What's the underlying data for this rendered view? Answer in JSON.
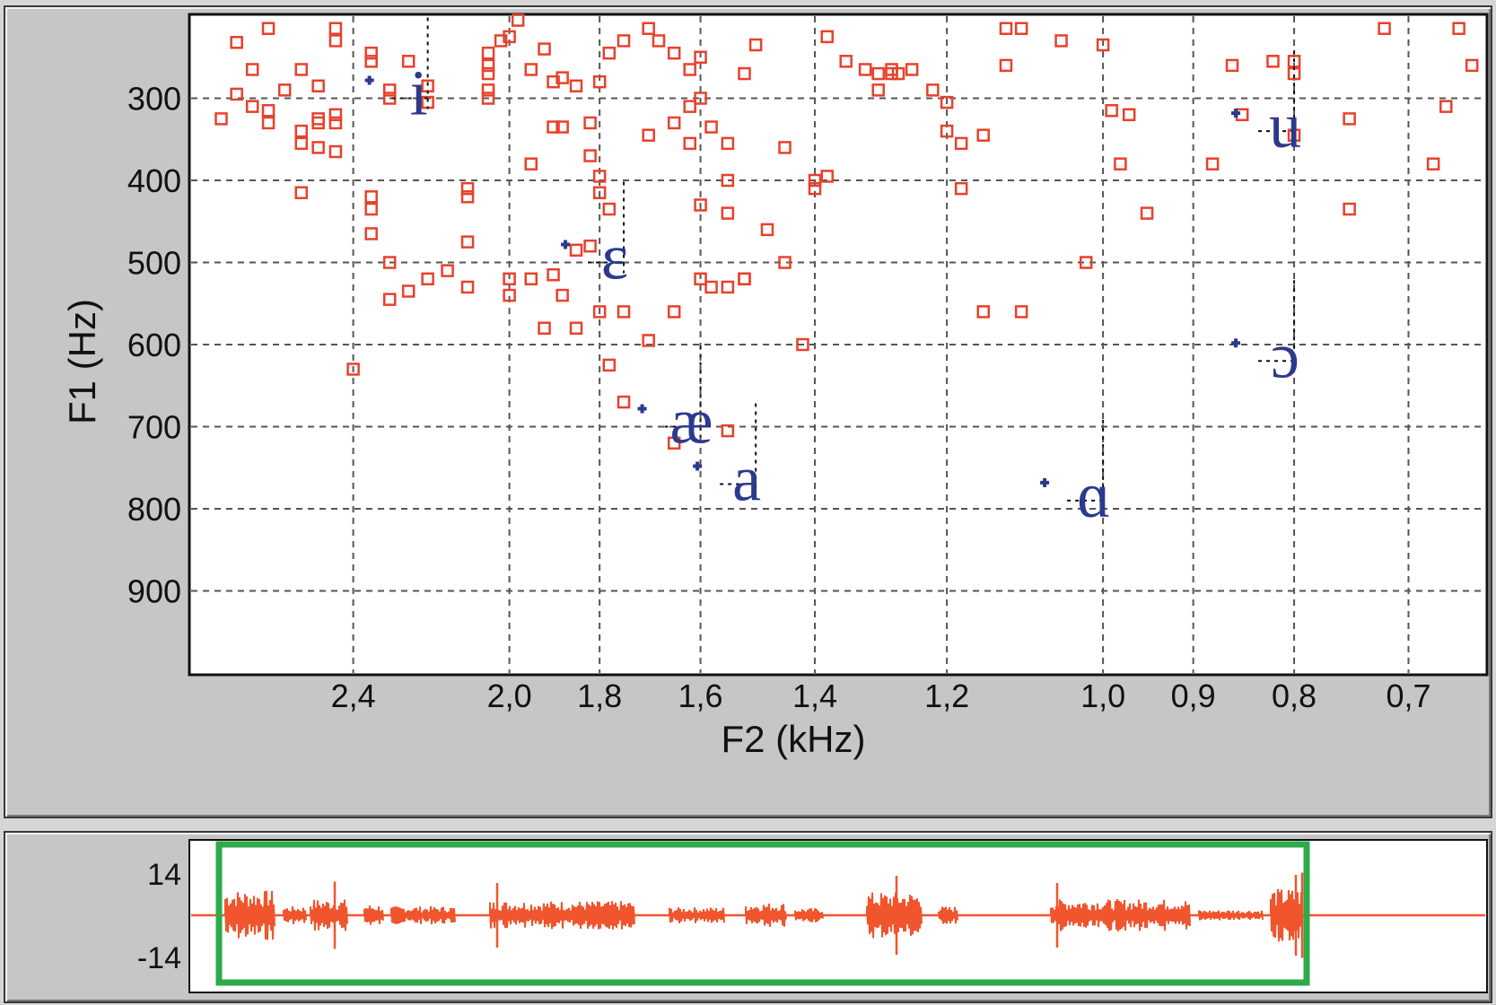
{
  "formant_chart": {
    "y_label": "F1 (Hz)",
    "x_label": "F2 (kHz)",
    "y_ticks": [
      "300",
      "400",
      "500",
      "600",
      "700",
      "800",
      "900"
    ],
    "x_ticks": [
      "2,4",
      "2,0",
      "1,8",
      "1,6",
      "1,4",
      "1,2",
      "1,0",
      "0,9",
      "0,8",
      "0,7"
    ],
    "vowels": [
      {
        "symbol": "i",
        "f2": 2.2,
        "f1": 300
      },
      {
        "symbol": "ɛ",
        "f2": 1.75,
        "f1": 500
      },
      {
        "symbol": "æ",
        "f2": 1.6,
        "f1": 700
      },
      {
        "symbol": "a",
        "f2": 1.5,
        "f1": 770
      },
      {
        "symbol": "ɑ",
        "f2": 1.0,
        "f1": 790
      },
      {
        "symbol": "ɔ",
        "f2": 0.8,
        "f1": 620
      },
      {
        "symbol": "u",
        "f2": 0.8,
        "f1": 340
      }
    ],
    "colors": {
      "points": "#e8412c",
      "vowels": "#2b3a8c",
      "grid": "#555555"
    }
  },
  "waveform": {
    "y_ticks": [
      "14",
      "-14"
    ],
    "colors": {
      "signal": "#f0552e",
      "selection": "#2daa4a"
    }
  },
  "chart_data": {
    "type": "scatter",
    "xlabel": "F2 (kHz)",
    "ylabel": "F1 (Hz)",
    "x_scale": "log, reversed",
    "y_inverted": true,
    "xlim": [
      2.9,
      0.64
    ],
    "ylim": [
      200,
      1000
    ],
    "grid": true,
    "x_ticks": [
      2.4,
      2.0,
      1.8,
      1.6,
      1.4,
      1.2,
      1.0,
      0.9,
      0.8,
      0.7
    ],
    "y_ticks": [
      300,
      400,
      500,
      600,
      700,
      800,
      900
    ],
    "series": [
      {
        "values": [
          [
            2.75,
            232
          ],
          [
            2.65,
            215
          ],
          [
            2.55,
            265
          ],
          [
            2.5,
            285
          ],
          [
            2.45,
            215
          ],
          [
            2.45,
            230
          ],
          [
            2.7,
            265
          ],
          [
            2.75,
            295
          ],
          [
            2.6,
            290
          ],
          [
            2.65,
            315
          ],
          [
            2.7,
            310
          ],
          [
            2.8,
            325
          ],
          [
            2.65,
            330
          ],
          [
            2.55,
            340
          ],
          [
            2.5,
            330
          ],
          [
            2.5,
            325
          ],
          [
            2.45,
            320
          ],
          [
            2.45,
            330
          ],
          [
            2.55,
            355
          ],
          [
            2.5,
            360
          ],
          [
            2.45,
            365
          ],
          [
            2.55,
            415
          ],
          [
            2.35,
            255
          ],
          [
            2.35,
            245
          ],
          [
            2.3,
            300
          ],
          [
            2.3,
            290
          ],
          [
            2.35,
            420
          ],
          [
            2.35,
            435
          ],
          [
            2.35,
            465
          ],
          [
            2.3,
            500
          ],
          [
            2.25,
            535
          ],
          [
            2.2,
            520
          ],
          [
            2.15,
            510
          ],
          [
            2.3,
            545
          ],
          [
            2.1,
            410
          ],
          [
            2.1,
            420
          ],
          [
            2.1,
            475
          ],
          [
            2.1,
            530
          ],
          [
            2.0,
            520
          ],
          [
            2.0,
            540
          ],
          [
            2.4,
            630
          ],
          [
            2.25,
            255
          ],
          [
            2.2,
            285
          ],
          [
            2.2,
            305
          ],
          [
            2.05,
            245
          ],
          [
            2.05,
            260
          ],
          [
            2.05,
            270
          ],
          [
            2.05,
            290
          ],
          [
            2.05,
            300
          ],
          [
            2.02,
            230
          ],
          [
            2.0,
            225
          ],
          [
            1.98,
            205
          ],
          [
            1.95,
            265
          ],
          [
            1.92,
            240
          ],
          [
            1.9,
            280
          ],
          [
            1.88,
            275
          ],
          [
            1.85,
            285
          ],
          [
            1.82,
            370
          ],
          [
            1.8,
            395
          ],
          [
            1.78,
            435
          ],
          [
            1.9,
            515
          ],
          [
            1.88,
            540
          ],
          [
            1.85,
            485
          ],
          [
            1.82,
            480
          ],
          [
            1.8,
            560
          ],
          [
            1.75,
            560
          ],
          [
            1.7,
            595
          ],
          [
            1.65,
            560
          ],
          [
            1.6,
            430
          ],
          [
            1.55,
            440
          ],
          [
            1.52,
            520
          ],
          [
            1.48,
            460
          ],
          [
            1.45,
            500
          ],
          [
            1.42,
            600
          ],
          [
            1.4,
            410
          ],
          [
            1.38,
            395
          ],
          [
            1.3,
            290
          ],
          [
            1.28,
            270
          ],
          [
            1.2,
            305
          ],
          [
            1.15,
            560
          ],
          [
            1.12,
            215
          ],
          [
            1.1,
            560
          ],
          [
            1.95,
            520
          ],
          [
            1.92,
            580
          ],
          [
            1.78,
            625
          ],
          [
            1.75,
            670
          ],
          [
            1.65,
            720
          ],
          [
            1.55,
            705
          ],
          [
            1.9,
            335
          ],
          [
            1.88,
            335
          ],
          [
            1.82,
            330
          ],
          [
            1.8,
            280
          ],
          [
            1.78,
            245
          ],
          [
            1.75,
            230
          ],
          [
            1.7,
            215
          ],
          [
            1.68,
            230
          ],
          [
            1.65,
            245
          ],
          [
            1.62,
            265
          ],
          [
            1.6,
            300
          ],
          [
            1.58,
            335
          ],
          [
            1.55,
            355
          ],
          [
            1.55,
            400
          ],
          [
            1.52,
            270
          ],
          [
            1.5,
            235
          ],
          [
            1.45,
            360
          ],
          [
            1.4,
            400
          ],
          [
            1.38,
            225
          ],
          [
            1.35,
            255
          ],
          [
            1.32,
            265
          ],
          [
            1.3,
            270
          ],
          [
            1.28,
            265
          ],
          [
            1.27,
            270
          ],
          [
            1.25,
            265
          ],
          [
            1.22,
            290
          ],
          [
            1.2,
            340
          ],
          [
            1.18,
            410
          ],
          [
            1.18,
            355
          ],
          [
            1.15,
            345
          ],
          [
            1.12,
            260
          ],
          [
            1.1,
            215
          ],
          [
            1.05,
            230
          ],
          [
            1.02,
            500
          ],
          [
            1.0,
            235
          ],
          [
            0.99,
            315
          ],
          [
            0.98,
            380
          ],
          [
            0.95,
            440
          ],
          [
            0.97,
            320
          ],
          [
            0.88,
            380
          ],
          [
            0.86,
            260
          ],
          [
            0.85,
            320
          ],
          [
            0.82,
            255
          ],
          [
            0.8,
            255
          ],
          [
            0.8,
            270
          ],
          [
            0.8,
            345
          ],
          [
            0.75,
            325
          ],
          [
            0.75,
            435
          ],
          [
            0.72,
            215
          ],
          [
            0.68,
            380
          ],
          [
            0.67,
            310
          ],
          [
            0.66,
            215
          ],
          [
            0.65,
            260
          ],
          [
            1.95,
            380
          ],
          [
            1.85,
            580
          ],
          [
            1.8,
            415
          ],
          [
            1.7,
            345
          ],
          [
            1.65,
            330
          ],
          [
            1.62,
            310
          ],
          [
            1.6,
            250
          ],
          [
            1.62,
            355
          ],
          [
            1.6,
            520
          ],
          [
            1.58,
            530
          ],
          [
            1.55,
            530
          ],
          [
            1.52,
            520
          ]
        ]
      }
    ]
  }
}
